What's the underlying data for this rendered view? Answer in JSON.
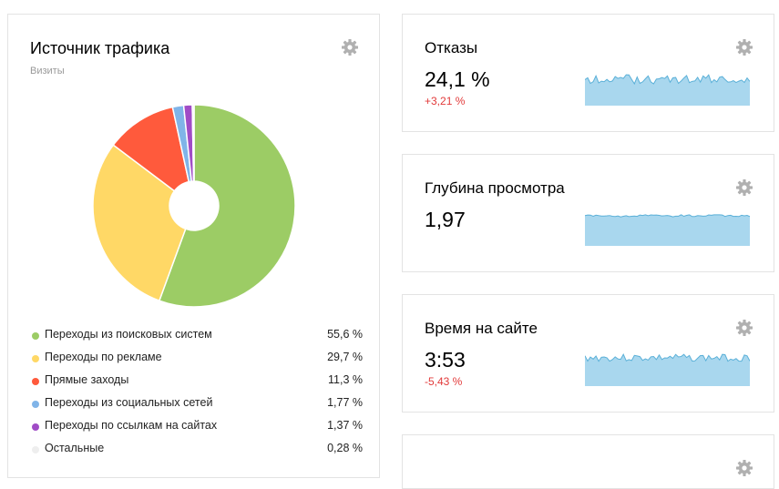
{
  "traffic": {
    "title": "Источник трафика",
    "subtitle": "Визиты",
    "icon": "gear-icon",
    "slices": [
      {
        "label": "Переходы из поисковых систем",
        "value": 55.6,
        "value_label": "55,6 %",
        "color": "#9ccc65"
      },
      {
        "label": "Переходы по рекламе",
        "value": 29.7,
        "value_label": "29,7 %",
        "color": "#ffd866"
      },
      {
        "label": "Прямые заходы",
        "value": 11.3,
        "value_label": "11,3 %",
        "color": "#ff5a3c"
      },
      {
        "label": "Переходы из социальных сетей",
        "value": 1.77,
        "value_label": "1,77 %",
        "color": "#80b4e8"
      },
      {
        "label": "Переходы по ссылкам на сайтах",
        "value": 1.37,
        "value_label": "1,37 %",
        "color": "#a04cc6"
      },
      {
        "label": "Остальные",
        "value": 0.28,
        "value_label": "0,28 %",
        "color": "#eeeeee"
      }
    ]
  },
  "metrics": [
    {
      "title": "Отказы",
      "value": "24,1 %",
      "delta": "+3,21 %",
      "icon": "gear-icon"
    },
    {
      "title": "Глубина просмотра",
      "value": "1,97",
      "delta": "",
      "icon": "gear-icon"
    },
    {
      "title": "Время на сайте",
      "value": "3:53",
      "delta": "-5,43 %",
      "icon": "gear-icon"
    }
  ],
  "colors": {
    "delta_negative": "#e23a3a",
    "sparkline_fill": "#a9d7ee",
    "sparkline_line": "#5ab0d8",
    "gear": "#b0b0b0"
  }
}
